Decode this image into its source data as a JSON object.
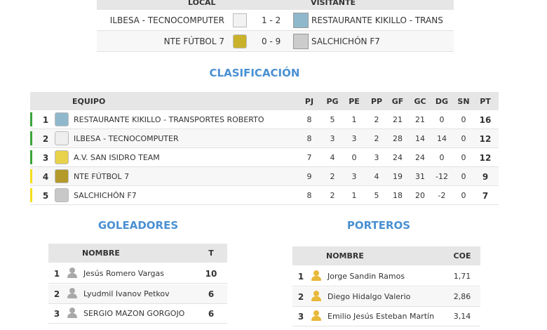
{
  "results": {
    "headers": {
      "local": "LOCAL",
      "visitor": "VISITANTE"
    },
    "matches": [
      {
        "home": "ILBESA - TECNOCOMPUTER",
        "home_logo": "shield-white",
        "score": "1 - 2",
        "away": "RESTAURANTE KIKILLO - TRANS",
        "away_logo": "kikillo-crest"
      },
      {
        "home": "NTE FÚTBOL 7",
        "home_logo": "nte-crest",
        "score": "0 - 9",
        "away": "SALCHICHÓN F7",
        "away_logo": "salchichon-crest"
      }
    ]
  },
  "standings": {
    "title": "CLASIFICACIÓN",
    "columns": [
      "EQUIPO",
      "PJ",
      "PG",
      "PE",
      "PP",
      "GF",
      "GC",
      "DG",
      "SN",
      "PT"
    ],
    "rows": [
      {
        "pos": "1",
        "team": "RESTAURANTE KIKILLO - TRANSPORTES ROBERTO",
        "stats": [
          "8",
          "5",
          "1",
          "2",
          "21",
          "21",
          "0",
          "0"
        ],
        "pt": "16",
        "zone": "#3aa53a",
        "logo": "#8fb8cc"
      },
      {
        "pos": "2",
        "team": "ILBESA - TECNOCOMPUTER",
        "stats": [
          "8",
          "3",
          "3",
          "2",
          "28",
          "14",
          "14",
          "0"
        ],
        "pt": "12",
        "zone": "#3aa53a",
        "logo": "#eeeeee"
      },
      {
        "pos": "3",
        "team": "A.V. SAN ISIDRO TEAM",
        "stats": [
          "7",
          "4",
          "0",
          "3",
          "24",
          "24",
          "0",
          "0"
        ],
        "pt": "12",
        "zone": "#3aa53a",
        "logo": "#e8d24a"
      },
      {
        "pos": "4",
        "team": "NTE FÚTBOL 7",
        "stats": [
          "9",
          "2",
          "3",
          "4",
          "19",
          "31",
          "-12",
          "0"
        ],
        "pt": "9",
        "zone": "#f5dd1a",
        "logo": "#b39a2a"
      },
      {
        "pos": "5",
        "team": "SALCHICHÓN F7",
        "stats": [
          "8",
          "2",
          "1",
          "5",
          "18",
          "20",
          "-2",
          "0"
        ],
        "pt": "7",
        "zone": "#f5dd1a",
        "logo": "#c8c8c8"
      }
    ]
  },
  "scorers": {
    "title": "GOLEADORES",
    "columns": [
      "NOMBRE",
      "T"
    ],
    "rows": [
      {
        "pos": "1",
        "name": "Jesús Romero Vargas",
        "value": "10"
      },
      {
        "pos": "2",
        "name": "Lyudmil Ivanov Petkov",
        "value": "6"
      },
      {
        "pos": "3",
        "name": "SERGIO MAZON GORGOJO",
        "value": "6"
      }
    ]
  },
  "keepers": {
    "title": "PORTEROS",
    "columns": [
      "NOMBRE",
      "COE"
    ],
    "rows": [
      {
        "pos": "1",
        "name": "Jorge Sandin Ramos",
        "value": "1,71"
      },
      {
        "pos": "2",
        "name": "Diego Hidalgo Valerio",
        "value": "2,86"
      },
      {
        "pos": "3",
        "name": "Emilio Jesús Esteban Martín",
        "value": "3,14"
      }
    ]
  }
}
